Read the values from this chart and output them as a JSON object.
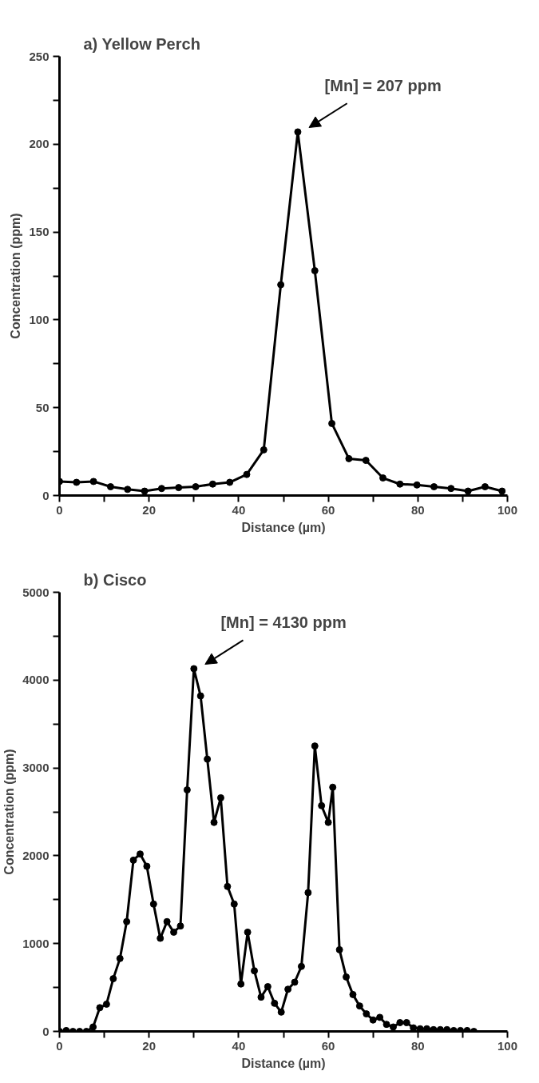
{
  "chart_data": [
    {
      "type": "line",
      "title": "a) Yellow Perch",
      "xlabel": "Distance (µm)",
      "ylabel": "Concentration (ppm)",
      "marker": "circle",
      "line_style": "solid",
      "grid": false,
      "x": [
        0,
        3.8,
        7.6,
        11.4,
        15.2,
        19,
        22.8,
        26.6,
        30.4,
        34.2,
        38,
        41.8,
        45.6,
        49.4,
        53.2,
        57,
        60.8,
        64.6,
        68.4,
        72.2,
        76,
        79.8,
        83.6,
        87.4,
        91.2,
        95,
        98.8
      ],
      "series": [
        {
          "color": "#000000",
          "values": [
            8,
            7.5,
            8,
            5,
            3.5,
            2.5,
            4,
            4.5,
            5,
            6.5,
            7.5,
            12,
            26,
            120,
            207,
            128,
            41,
            21,
            20,
            10,
            6.5,
            6,
            5,
            4,
            2.5,
            5,
            2.5
          ]
        }
      ],
      "xlim": [
        0,
        100
      ],
      "xticks": [
        0,
        {
          "value": 10,
          "label": null
        },
        20,
        {
          "value": 30,
          "label": null
        },
        40,
        {
          "value": 50,
          "label": null
        },
        60,
        {
          "value": 70,
          "label": null
        },
        80,
        {
          "value": 90,
          "label": null
        },
        100
      ],
      "ylim": [
        0,
        250
      ],
      "yticks": [
        0,
        {
          "value": 25,
          "label": null
        },
        50,
        {
          "value": 75,
          "label": null
        },
        100,
        {
          "value": 125,
          "label": null
        },
        150,
        {
          "value": 175,
          "label": null
        },
        200,
        {
          "value": 225,
          "label": null
        },
        250
      ],
      "annotations": [
        {
          "text": "[Mn] = 207 ppm",
          "x": 53.2,
          "y": 207
        }
      ]
    },
    {
      "type": "line",
      "title": "b) Cisco",
      "xlabel": "Distance (µm)",
      "ylabel": "Concentration (ppm)",
      "marker": "circle",
      "line_style": "solid",
      "grid": false,
      "x": [
        0,
        1.5,
        3,
        4.5,
        6,
        7.5,
        9,
        10.5,
        12,
        13.5,
        15,
        16.5,
        18,
        19.5,
        21,
        22.5,
        24,
        25.5,
        27,
        28.5,
        30,
        31.5,
        33,
        34.5,
        36,
        37.5,
        39,
        40.5,
        42,
        43.5,
        45,
        46.5,
        48,
        49.5,
        51,
        52.5,
        54,
        55.5,
        57,
        58.5,
        60,
        61,
        62.5,
        64,
        65.5,
        67,
        68.5,
        70,
        71.5,
        73,
        74.5,
        76,
        77.5,
        79,
        80.5,
        82,
        83.5,
        85,
        86.5,
        88,
        89.5,
        91,
        92.5
      ],
      "series": [
        {
          "color": "#000000",
          "values": [
            0,
            10,
            0,
            0,
            0,
            50,
            270,
            310,
            600,
            830,
            1250,
            1950,
            2020,
            1880,
            1450,
            1060,
            1250,
            1130,
            1200,
            2750,
            4130,
            3820,
            3100,
            2380,
            2660,
            1650,
            1450,
            540,
            1130,
            690,
            390,
            510,
            320,
            220,
            480,
            560,
            740,
            1580,
            3250,
            2570,
            2380,
            2780,
            930,
            620,
            420,
            290,
            200,
            130,
            160,
            80,
            50,
            100,
            100,
            40,
            30,
            30,
            20,
            20,
            20,
            10,
            10,
            10,
            0
          ]
        }
      ],
      "xlim": [
        0,
        100
      ],
      "xticks": [
        0,
        {
          "value": 10,
          "label": null
        },
        20,
        {
          "value": 30,
          "label": null
        },
        40,
        {
          "value": 50,
          "label": null
        },
        60,
        {
          "value": 70,
          "label": null
        },
        80,
        {
          "value": 90,
          "label": null
        },
        100
      ],
      "ylim": [
        0,
        5000
      ],
      "yticks": [
        0,
        {
          "value": 500,
          "label": null
        },
        1000,
        {
          "value": 1500,
          "label": null
        },
        2000,
        {
          "value": 2500,
          "label": null
        },
        3000,
        {
          "value": 3500,
          "label": null
        },
        4000,
        {
          "value": 4500,
          "label": null
        },
        5000
      ],
      "annotations": [
        {
          "text": "[Mn] = 4130 ppm",
          "x": 30,
          "y": 4130
        }
      ]
    }
  ]
}
